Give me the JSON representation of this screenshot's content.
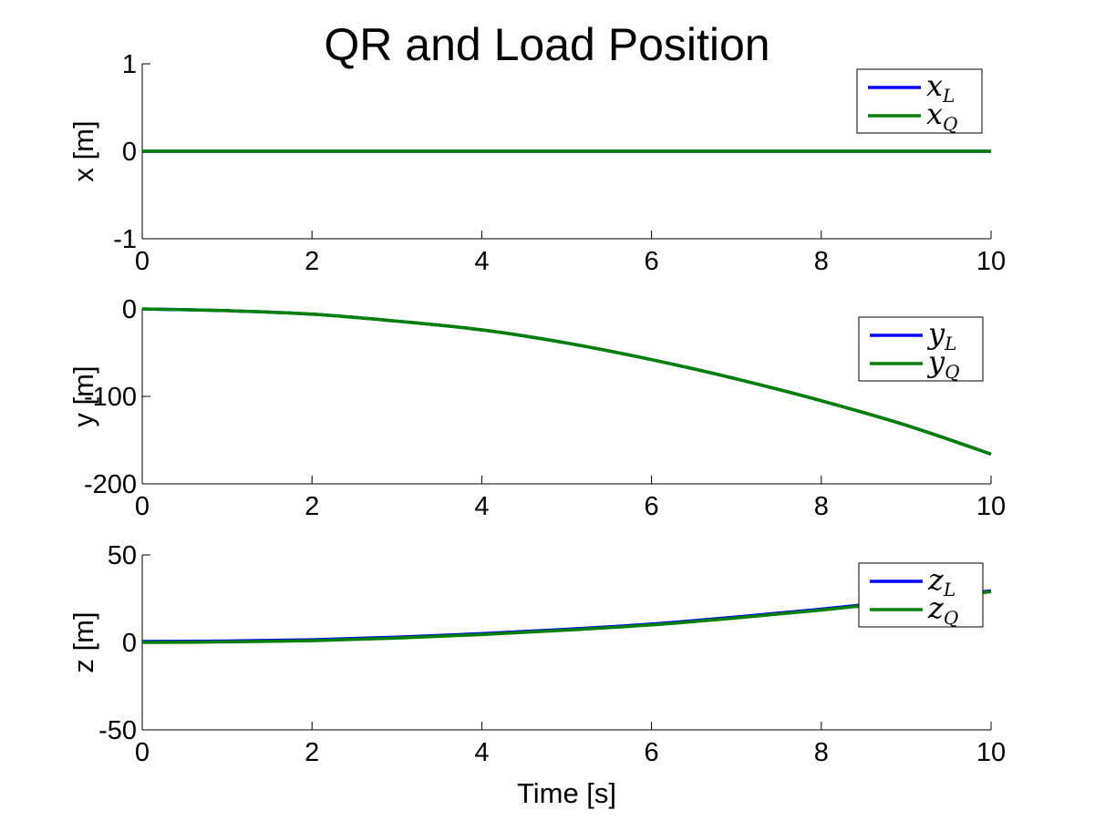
{
  "figure": {
    "title": "QR and Load Position"
  },
  "chart_data": [
    {
      "type": "line",
      "ylabel": "x [m]",
      "xlabel": "",
      "xlim": [
        0,
        10
      ],
      "ylim": [
        -1,
        1
      ],
      "xticks": [
        "0",
        "2",
        "4",
        "6",
        "8",
        "10"
      ],
      "yticks": [
        "1",
        "0",
        "-1"
      ],
      "grid": false,
      "legend_position": "top-right",
      "x": [
        0,
        1,
        2,
        3,
        4,
        5,
        6,
        7,
        8,
        9,
        10
      ],
      "series": [
        {
          "name": "x",
          "sub": "L",
          "color": "#0000ff",
          "values": [
            0,
            0,
            0,
            0,
            0,
            0,
            0,
            0,
            0,
            0,
            0
          ]
        },
        {
          "name": "x",
          "sub": "Q",
          "color": "#008000",
          "values": [
            0,
            0,
            0,
            0,
            0,
            0,
            0,
            0,
            0,
            0,
            0
          ]
        }
      ]
    },
    {
      "type": "line",
      "ylabel": "y [m]",
      "xlabel": "",
      "xlim": [
        0,
        10
      ],
      "ylim": [
        -200,
        0
      ],
      "xticks": [
        "0",
        "2",
        "4",
        "6",
        "8",
        "10"
      ],
      "yticks": [
        "0",
        "-100",
        "-200"
      ],
      "grid": false,
      "legend_position": "top-right",
      "x": [
        0,
        1,
        2,
        3,
        4,
        5,
        6,
        7,
        8,
        9,
        10
      ],
      "series": [
        {
          "name": "y",
          "sub": "L",
          "color": "#0000ff",
          "values": [
            0,
            -2,
            -6,
            -14,
            -24,
            -39,
            -58,
            -80,
            -105,
            -133,
            -166
          ]
        },
        {
          "name": "y",
          "sub": "Q",
          "color": "#008000",
          "values": [
            0,
            -2,
            -6,
            -14,
            -24,
            -39,
            -58,
            -80,
            -105,
            -133,
            -166
          ]
        }
      ]
    },
    {
      "type": "line",
      "ylabel": "z [m]",
      "xlabel": "Time [s]",
      "xlim": [
        0,
        10
      ],
      "ylim": [
        -50,
        50
      ],
      "xticks": [
        "0",
        "2",
        "4",
        "6",
        "8",
        "10"
      ],
      "yticks": [
        "50",
        "0",
        "-50"
      ],
      "grid": false,
      "legend_position": "top-right",
      "x": [
        0,
        1,
        2,
        3,
        4,
        5,
        6,
        7,
        8,
        9,
        10
      ],
      "series": [
        {
          "name": "z",
          "sub": "L",
          "color": "#0000ff",
          "values": [
            0.5,
            0.8,
            1.5,
            3,
            5,
            7.5,
            10.5,
            14.5,
            19,
            24,
            29.5
          ]
        },
        {
          "name": "z",
          "sub": "Q",
          "color": "#008000",
          "values": [
            0,
            0.3,
            1,
            2.5,
            4.5,
            7,
            10,
            14,
            18.5,
            23.5,
            29
          ]
        }
      ]
    }
  ]
}
